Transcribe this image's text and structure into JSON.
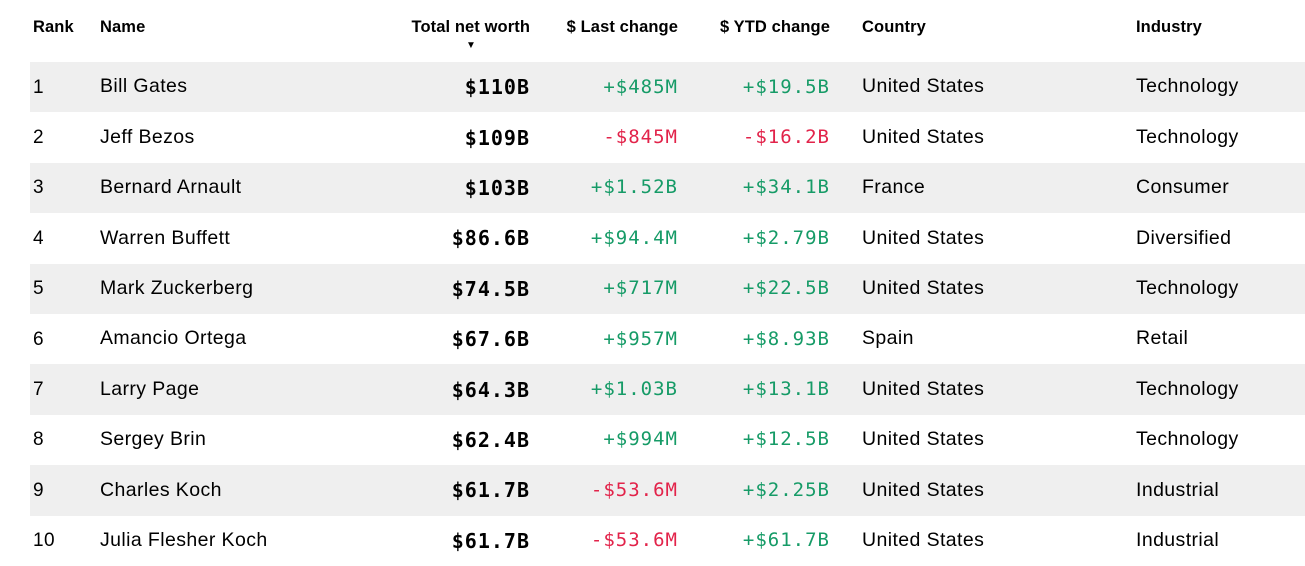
{
  "colors": {
    "positive": "#169b67",
    "negative": "#e2234a",
    "row_stripe": "#efefef",
    "text": "#000000"
  },
  "icons": {
    "sort_descending": "▼"
  },
  "table": {
    "columns": [
      {
        "key": "rank",
        "label": "Rank"
      },
      {
        "key": "name",
        "label": "Name"
      },
      {
        "key": "net_worth",
        "label": "Total net worth",
        "sorted": "descending"
      },
      {
        "key": "last_change",
        "label": "$ Last change"
      },
      {
        "key": "ytd_change",
        "label": "$ YTD change"
      },
      {
        "key": "country",
        "label": "Country"
      },
      {
        "key": "industry",
        "label": "Industry"
      }
    ],
    "rows": [
      {
        "rank": "1",
        "name": "Bill Gates",
        "net_worth": "$110B",
        "last_change": "+$485M",
        "ytd_change": "+$19.5B",
        "country": "United States",
        "industry": "Technology"
      },
      {
        "rank": "2",
        "name": "Jeff Bezos",
        "net_worth": "$109B",
        "last_change": "-$845M",
        "ytd_change": "-$16.2B",
        "country": "United States",
        "industry": "Technology"
      },
      {
        "rank": "3",
        "name": "Bernard Arnault",
        "net_worth": "$103B",
        "last_change": "+$1.52B",
        "ytd_change": "+$34.1B",
        "country": "France",
        "industry": "Consumer"
      },
      {
        "rank": "4",
        "name": "Warren Buffett",
        "net_worth": "$86.6B",
        "last_change": "+$94.4M",
        "ytd_change": "+$2.79B",
        "country": "United States",
        "industry": "Diversified"
      },
      {
        "rank": "5",
        "name": "Mark Zuckerberg",
        "net_worth": "$74.5B",
        "last_change": "+$717M",
        "ytd_change": "+$22.5B",
        "country": "United States",
        "industry": "Technology"
      },
      {
        "rank": "6",
        "name": "Amancio Ortega",
        "net_worth": "$67.6B",
        "last_change": "+$957M",
        "ytd_change": "+$8.93B",
        "country": "Spain",
        "industry": "Retail"
      },
      {
        "rank": "7",
        "name": "Larry Page",
        "net_worth": "$64.3B",
        "last_change": "+$1.03B",
        "ytd_change": "+$13.1B",
        "country": "United States",
        "industry": "Technology"
      },
      {
        "rank": "8",
        "name": "Sergey Brin",
        "net_worth": "$62.4B",
        "last_change": "+$994M",
        "ytd_change": "+$12.5B",
        "country": "United States",
        "industry": "Technology"
      },
      {
        "rank": "9",
        "name": "Charles Koch",
        "net_worth": "$61.7B",
        "last_change": "-$53.6M",
        "ytd_change": "+$2.25B",
        "country": "United States",
        "industry": "Industrial"
      },
      {
        "rank": "10",
        "name": "Julia Flesher Koch",
        "net_worth": "$61.7B",
        "last_change": "-$53.6M",
        "ytd_change": "+$61.7B",
        "country": "United States",
        "industry": "Industrial"
      }
    ]
  }
}
